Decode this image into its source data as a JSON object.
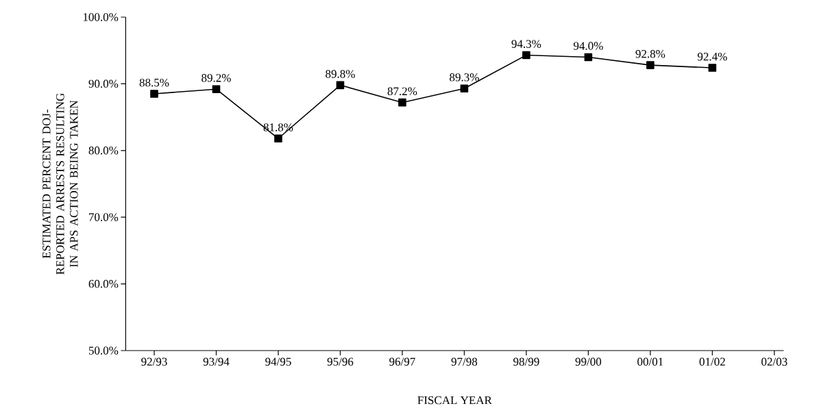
{
  "chart_data": {
    "type": "line",
    "xlabel": "FISCAL YEAR",
    "ylabel": "ESTIMATED PERCENT DOJ-REPORTED ARRESTS RESULTING IN APS ACTION BEING TAKEN",
    "categories": [
      "92/93",
      "93/94",
      "94/95",
      "95/96",
      "96/97",
      "97/98",
      "98/99",
      "99/00",
      "00/01",
      "01/02",
      "02/03"
    ],
    "series": [
      {
        "color": "#000000",
        "values": [
          88.5,
          89.2,
          81.8,
          89.8,
          87.2,
          89.3,
          94.3,
          94.0,
          92.8,
          92.4,
          null
        ],
        "value_labels": [
          "88.5%",
          "89.2%",
          "81.8%",
          "89.8%",
          "87.2%",
          "89.3%",
          "94.3%",
          "94.0%",
          "92.8%",
          "92.4%",
          null
        ]
      }
    ],
    "ylim": [
      50,
      100
    ],
    "yticks": [
      {
        "value": 50,
        "label": "50.0%"
      },
      {
        "value": 60,
        "label": "60.0%"
      },
      {
        "value": 70,
        "label": "70.0%"
      },
      {
        "value": 80,
        "label": "80.0%"
      },
      {
        "value": 90,
        "label": "90.0%"
      },
      {
        "value": 100,
        "label": "100.0%"
      }
    ],
    "marker": "square",
    "line_style": "solid"
  }
}
